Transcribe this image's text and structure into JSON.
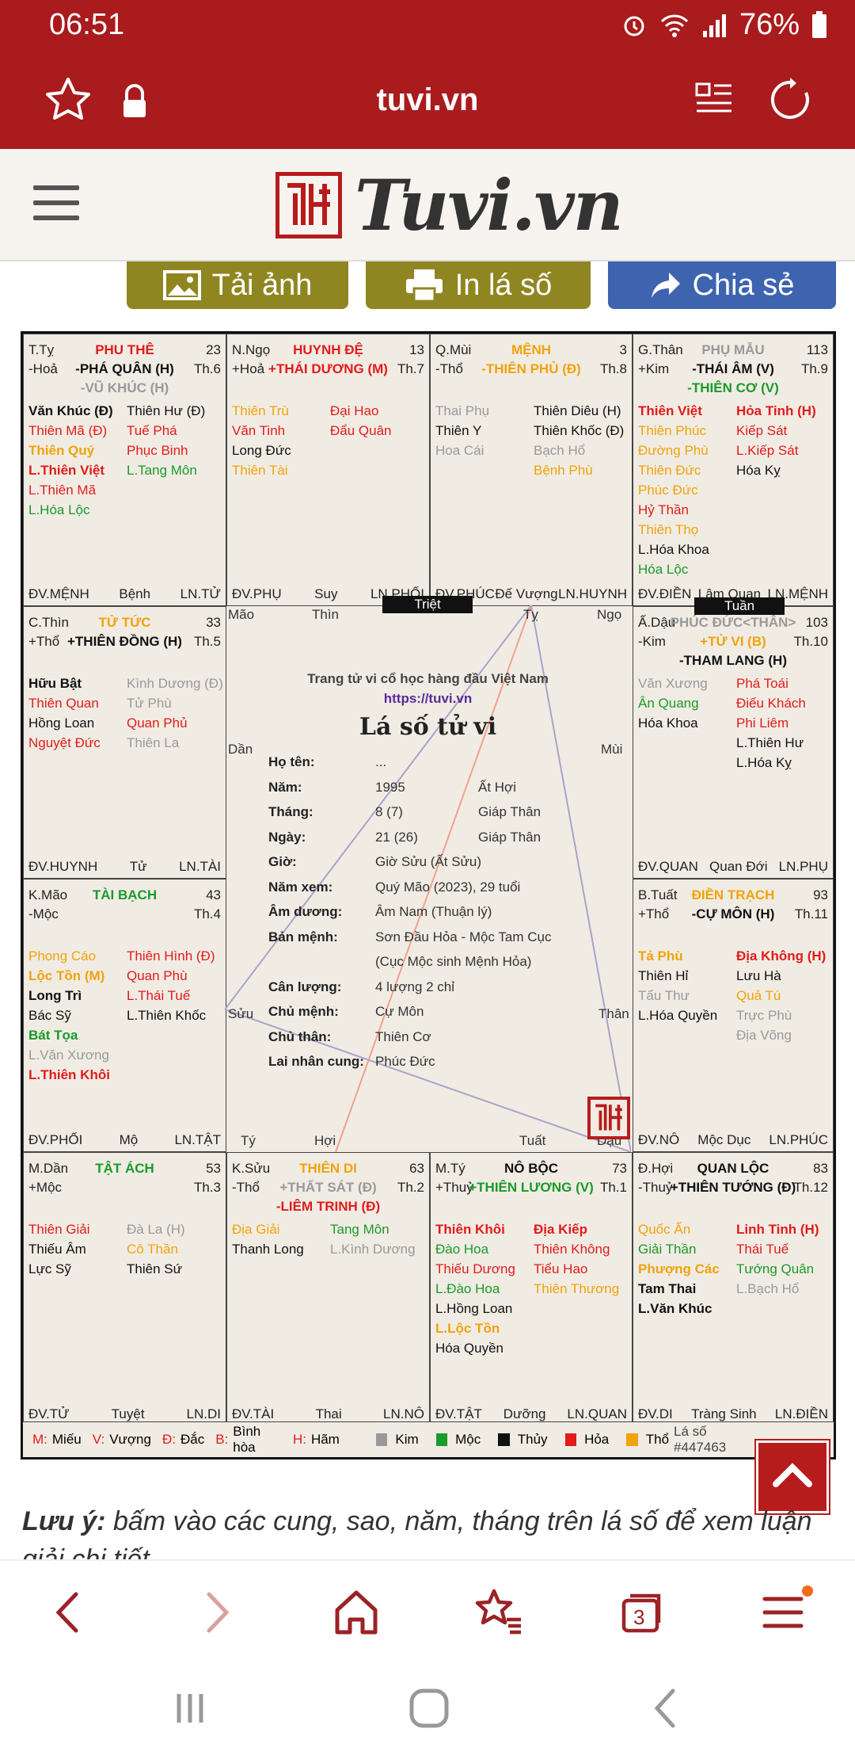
{
  "status": {
    "time": "06:51",
    "battery": "76%"
  },
  "browser": {
    "url": "tuvi.vn",
    "tab_count": "3"
  },
  "site": {
    "logo_text": "Tuvi.vn"
  },
  "actions": {
    "download": "Tải ảnh",
    "print": "In lá số",
    "share": "Chia sẻ"
  },
  "cells": [
    {
      "id": "ty",
      "h1": "T.Tỵ",
      "h2": "-Hoả",
      "palace": "PHU THÊ",
      "palace_color": "#e21b1b",
      "num": "23",
      "main": "-PHÁ QUÂN (H)",
      "main_color": "#111",
      "main2": "-VŨ KHÚC (H)",
      "main2_color": "#999",
      "th": "Th.6",
      "left": [
        {
          "t": "Văn Khúc (Đ)",
          "c": "c-black b"
        },
        {
          "t": "Thiên Mã (Đ)",
          "c": "c-red"
        },
        {
          "t": "Thiên Quý",
          "c": "c-orange b"
        },
        {
          "t": "L.Thiên Việt",
          "c": "c-red b"
        },
        {
          "t": "L.Thiên Mã",
          "c": "c-red"
        },
        {
          "t": "L.Hóa Lộc",
          "c": "c-green"
        }
      ],
      "right": [
        {
          "t": "Thiên Hư (Đ)",
          "c": "c-black"
        },
        {
          "t": "Tuế Phá",
          "c": "c-red"
        },
        {
          "t": "Phục Binh",
          "c": "c-red"
        },
        {
          "t": "L.Tang Môn",
          "c": "c-green"
        }
      ],
      "f1": "ĐV.MỆNH",
      "f2": "Bệnh",
      "f3": "LN.TỬ"
    },
    {
      "id": "ngo",
      "h1": "N.Ngọ",
      "h2": "+Hoả",
      "palace": "HUYNH ĐỆ",
      "palace_color": "#e21b1b",
      "num": "13",
      "main": "+THÁI DƯƠNG (M)",
      "main_color": "#e21b1b",
      "main2": "",
      "main2_color": "#111",
      "th": "Th.7",
      "left": [
        {
          "t": "Thiên Trù",
          "c": "c-orange"
        },
        {
          "t": "Văn Tinh",
          "c": "c-red"
        },
        {
          "t": "Long Đức",
          "c": "c-black"
        },
        {
          "t": "Thiên Tài",
          "c": "c-orange"
        }
      ],
      "right": [
        {
          "t": "Đại Hao",
          "c": "c-red"
        },
        {
          "t": "Đẩu Quân",
          "c": "c-red"
        }
      ],
      "f1": "ĐV.PHỤ",
      "f2": "Suy",
      "f3": "LN.PHỐI"
    },
    {
      "id": "mui",
      "h1": "Q.Mùi",
      "h2": "-Thổ",
      "palace": "MỆNH",
      "palace_color": "#f2a20a",
      "num": "3",
      "main": "-THIÊN PHỦ (Đ)",
      "main_color": "#f2a20a",
      "main2": "",
      "main2_color": "#111",
      "th": "Th.8",
      "left": [
        {
          "t": "Thai Phụ",
          "c": "c-gray"
        },
        {
          "t": "Thiên Y",
          "c": "c-black"
        },
        {
          "t": "Hoa Cái",
          "c": "c-gray"
        }
      ],
      "right": [
        {
          "t": "Thiên Diêu (H)",
          "c": "c-black"
        },
        {
          "t": "Thiên Khốc (Đ)",
          "c": "c-black"
        },
        {
          "t": "Bạch Hổ",
          "c": "c-gray"
        },
        {
          "t": "Bệnh Phù",
          "c": "c-orange"
        }
      ],
      "f1": "ĐV.PHÚC",
      "f2": "Đế Vượng",
      "f3": "LN.HUYNH"
    },
    {
      "id": "than",
      "h1": "G.Thân",
      "h2": "+Kim",
      "palace": "PHỤ MẪU",
      "palace_color": "#999",
      "num": "113",
      "main": "-THÁI ÂM (V)",
      "main_color": "#111",
      "main2": "-THIÊN CƠ (V)",
      "main2_color": "#1a9a2a",
      "th": "Th.9",
      "left": [
        {
          "t": "Thiên Việt",
          "c": "c-red b"
        },
        {
          "t": "Thiên Phúc",
          "c": "c-orange"
        },
        {
          "t": "Đường Phù",
          "c": "c-orange"
        },
        {
          "t": "Thiên Đức",
          "c": "c-orange"
        },
        {
          "t": "Phúc Đức",
          "c": "c-orange"
        },
        {
          "t": "Hỷ Thần",
          "c": "c-red"
        },
        {
          "t": "Thiên Thọ",
          "c": "c-orange"
        },
        {
          "t": "L.Hóa Khoa",
          "c": "c-black"
        },
        {
          "t": "Hóa Lộc",
          "c": "c-green"
        }
      ],
      "right": [
        {
          "t": "Hỏa Tinh (H)",
          "c": "c-red b"
        },
        {
          "t": "Kiếp Sát",
          "c": "c-red"
        },
        {
          "t": "L.Kiếp Sát",
          "c": "c-red"
        },
        {
          "t": "Hóa Kỵ",
          "c": "c-black"
        }
      ],
      "f1": "ĐV.ĐIỀN",
      "f2": "Lâm Quan",
      "f3": "LN.MỆNH"
    },
    {
      "id": "thin",
      "h1": "C.Thìn",
      "h2": "+Thổ",
      "palace": "TỬ TỨC",
      "palace_color": "#f2a20a",
      "num": "33",
      "main": "+THIÊN ĐỒNG (H)",
      "main_color": "#111",
      "main2": "",
      "main2_color": "#111",
      "th": "Th.5",
      "left": [
        {
          "t": "Hữu Bật",
          "c": "c-black b"
        },
        {
          "t": "Thiên Quan",
          "c": "c-red"
        },
        {
          "t": "Hồng Loan",
          "c": "c-black"
        },
        {
          "t": "Nguyệt Đức",
          "c": "c-red"
        }
      ],
      "right": [
        {
          "t": "Kình Dương (Đ)",
          "c": "c-gray"
        },
        {
          "t": "Tử Phù",
          "c": "c-gray"
        },
        {
          "t": "Quan Phủ",
          "c": "c-red"
        },
        {
          "t": "Thiên La",
          "c": "c-gray"
        }
      ],
      "f1": "ĐV.HUYNH",
      "f2": "Tử",
      "f3": "LN.TÀI"
    },
    {
      "id": "dau",
      "h1": "Ấ.Dậu",
      "h2": "-Kim",
      "palace": "PHÚC ĐỨC<THÂN>",
      "palace_color": "#999",
      "num": "103",
      "main": "+TỬ VI (B)",
      "main_color": "#f2a20a",
      "main2": "-THAM LANG (H)",
      "main2_color": "#111",
      "th": "Th.10",
      "left": [
        {
          "t": "Văn Xương",
          "c": "c-gray"
        },
        {
          "t": "Ân Quang",
          "c": "c-green"
        },
        {
          "t": "Hóa Khoa",
          "c": "c-black"
        }
      ],
      "right": [
        {
          "t": "Phá Toái",
          "c": "c-red"
        },
        {
          "t": "Điếu Khách",
          "c": "c-red"
        },
        {
          "t": "Phi Liêm",
          "c": "c-red"
        },
        {
          "t": "L.Thiên Hư",
          "c": "c-black"
        },
        {
          "t": "L.Hóa Kỵ",
          "c": "c-black"
        }
      ],
      "f1": "ĐV.QUAN",
      "f2": "Quan Đới",
      "f3": "LN.PHỤ"
    },
    {
      "id": "mao",
      "h1": "K.Mão",
      "h2": "-Mộc",
      "palace": "TÀI BẠCH",
      "palace_color": "#1a9a2a",
      "num": "43",
      "main": "",
      "main_color": "#111",
      "main2": "",
      "main2_color": "#111",
      "th": "Th.4",
      "left": [
        {
          "t": "Phong Cáo",
          "c": "c-orange"
        },
        {
          "t": "Lộc Tồn (M)",
          "c": "c-orange b"
        },
        {
          "t": "Long Trì",
          "c": "c-black b"
        },
        {
          "t": "Bác Sỹ",
          "c": "c-black"
        },
        {
          "t": "Bát Tọa",
          "c": "c-green b"
        },
        {
          "t": "L.Văn Xương",
          "c": "c-gray"
        },
        {
          "t": "L.Thiên Khôi",
          "c": "c-red b"
        }
      ],
      "right": [
        {
          "t": "Thiên Hình (Đ)",
          "c": "c-red"
        },
        {
          "t": "Quan Phù",
          "c": "c-red"
        },
        {
          "t": "L.Thái Tuế",
          "c": "c-red"
        },
        {
          "t": "L.Thiên Khốc",
          "c": "c-black"
        }
      ],
      "f1": "ĐV.PHỐI",
      "f2": "Mộ",
      "f3": "LN.TẬT"
    },
    {
      "id": "tuat",
      "h1": "B.Tuất",
      "h2": "+Thổ",
      "palace": "ĐIỀN TRẠCH",
      "palace_color": "#f2a20a",
      "num": "93",
      "main": "-CỰ MÔN (H)",
      "main_color": "#111",
      "main2": "",
      "main2_color": "#111",
      "th": "Th.11",
      "left": [
        {
          "t": "Tả Phù",
          "c": "c-orange b"
        },
        {
          "t": "Thiên Hỉ",
          "c": "c-black"
        },
        {
          "t": "Tấu Thư",
          "c": "c-gray"
        },
        {
          "t": "L.Hóa Quyền",
          "c": "c-black"
        }
      ],
      "right": [
        {
          "t": "Địa Không (H)",
          "c": "c-red b"
        },
        {
          "t": "Lưu Hà",
          "c": "c-black"
        },
        {
          "t": "Quả Tú",
          "c": "c-orange"
        },
        {
          "t": "Trực Phù",
          "c": "c-gray"
        },
        {
          "t": "Địa Võng",
          "c": "c-gray"
        }
      ],
      "f1": "ĐV.NÔ",
      "f2": "Mộc Dục",
      "f3": "LN.PHÚC"
    },
    {
      "id": "dan",
      "h1": "M.Dần",
      "h2": "+Mộc",
      "palace": "TẬT ÁCH",
      "palace_color": "#1a9a2a",
      "num": "53",
      "main": "",
      "main_color": "#111",
      "main2": "",
      "main2_color": "#111",
      "th": "Th.3",
      "left": [
        {
          "t": "Thiên Giải",
          "c": "c-red"
        },
        {
          "t": "Thiếu Âm",
          "c": "c-black"
        },
        {
          "t": "Lực Sỹ",
          "c": "c-black"
        }
      ],
      "right": [
        {
          "t": "Đà La (H)",
          "c": "c-gray"
        },
        {
          "t": "Cô Thần",
          "c": "c-orange"
        },
        {
          "t": "Thiên Sứ",
          "c": "c-black"
        }
      ],
      "f1": "ĐV.TỬ",
      "f2": "Tuyệt",
      "f3": "LN.DI"
    },
    {
      "id": "suu",
      "h1": "K.Sửu",
      "h2": "-Thổ",
      "palace": "THIÊN DI",
      "palace_color": "#f2a20a",
      "num": "63",
      "main": "+THẤT SÁT (Đ)",
      "main_color": "#999",
      "main2": "-LIÊM TRINH (Đ)",
      "main2_color": "#e21b1b",
      "th": "Th.2",
      "left": [
        {
          "t": "Địa Giải",
          "c": "c-orange"
        },
        {
          "t": "Thanh Long",
          "c": "c-black"
        }
      ],
      "right": [
        {
          "t": "Tang Môn",
          "c": "c-green"
        },
        {
          "t": "L.Kình Dương",
          "c": "c-gray"
        }
      ],
      "f1": "ĐV.TÀI",
      "f2": "Thai",
      "f3": "LN.NÔ"
    },
    {
      "id": "ti",
      "h1": "M.Tý",
      "h2": "+Thuỷ",
      "palace": "NÔ BỘC",
      "palace_color": "#111",
      "num": "73",
      "main": "+THIÊN LƯƠNG (V)",
      "main_color": "#1a9a2a",
      "main2": "",
      "main2_color": "#111",
      "th": "Th.1",
      "left": [
        {
          "t": "Thiên Khôi",
          "c": "c-red b"
        },
        {
          "t": "Đào Hoa",
          "c": "c-green"
        },
        {
          "t": "Thiếu Dương",
          "c": "c-red"
        },
        {
          "t": "L.Đào Hoa",
          "c": "c-green"
        },
        {
          "t": "L.Hồng Loan",
          "c": "c-black"
        },
        {
          "t": "L.Lộc Tồn",
          "c": "c-orange b"
        },
        {
          "t": "Hóa Quyền",
          "c": "c-black"
        }
      ],
      "right": [
        {
          "t": "Địa Kiếp",
          "c": "c-red b"
        },
        {
          "t": "Thiên Không",
          "c": "c-red"
        },
        {
          "t": "Tiểu Hao",
          "c": "c-red"
        },
        {
          "t": "Thiên Thương",
          "c": "c-orange"
        }
      ],
      "f1": "ĐV.TẬT",
      "f2": "Dưỡng",
      "f3": "LN.QUAN"
    },
    {
      "id": "hoi",
      "h1": "Đ.Hợi",
      "h2": "-Thuỷ",
      "palace": "QUAN LỘC",
      "palace_color": "#111",
      "num": "83",
      "main": "+THIÊN TƯỚNG (Đ)",
      "main_color": "#111",
      "main2": "",
      "main2_color": "#111",
      "th": "Th.12",
      "left": [
        {
          "t": "Quốc Ấn",
          "c": "c-orange"
        },
        {
          "t": "Giải Thần",
          "c": "c-green"
        },
        {
          "t": "Phượng Các",
          "c": "c-orange b"
        },
        {
          "t": "Tam Thai",
          "c": "c-black b"
        },
        {
          "t": "L.Văn Khúc",
          "c": "c-black b"
        }
      ],
      "right": [
        {
          "t": "Linh Tinh (H)",
          "c": "c-red b"
        },
        {
          "t": "Thái Tuế",
          "c": "c-red"
        },
        {
          "t": "Tướng Quân",
          "c": "c-green"
        },
        {
          "t": "L.Bạch Hổ",
          "c": "c-gray"
        }
      ],
      "f1": "ĐV.DI",
      "f2": "Tràng Sinh",
      "f3": "LN.ĐIỀN"
    }
  ],
  "center": {
    "corners": {
      "mao": "Mão",
      "thin": "Thìn",
      "ty": "Tỵ",
      "ngo": "Ngọ",
      "dan": "Dần",
      "mui": "Mùi",
      "suu": "Sửu",
      "than": "Thân",
      "ty2": "Tý",
      "hoi": "Hợi",
      "tuat": "Tuất",
      "dau": "Dậu"
    },
    "subtitle": "Trang tử vi cổ học hàng đầu Việt Nam",
    "link": "https://tuvi.vn",
    "heading": "Lá số tử vi",
    "rows": [
      {
        "k": "Họ tên:",
        "v": "...",
        "v2": ""
      },
      {
        "k": "Năm:",
        "v": "1995",
        "v2": "Ất Hợi"
      },
      {
        "k": "Tháng:",
        "v": "8 (7)",
        "v2": "Giáp Thân"
      },
      {
        "k": "Ngày:",
        "v": "21 (26)",
        "v2": "Giáp Thân"
      },
      {
        "k": "Giờ:",
        "v": "Giờ Sửu (Ất Sửu)",
        "v2": ""
      },
      {
        "k": "Năm xem:",
        "v": "Quý Mão (2023), 29 tuổi",
        "v2": ""
      },
      {
        "k": "Âm dương:",
        "v": "Âm Nam (Thuận lý)",
        "v2": ""
      },
      {
        "k": "Bản mệnh:",
        "v": "Sơn Đầu Hỏa - Mộc Tam Cục",
        "v2": ""
      },
      {
        "k": "",
        "v": "(Cục Mộc sinh Mệnh Hỏa)",
        "v2": ""
      },
      {
        "k": "Cân lượng:",
        "v": "4 lượng 2 chỉ",
        "v2": ""
      },
      {
        "k": "Chủ mệnh:",
        "v": "Cự Môn",
        "v2": ""
      },
      {
        "k": "Chủ thân:",
        "v": "Thiên Cơ",
        "v2": ""
      },
      {
        "k": "Lai nhân cung:",
        "v": "Phúc Đức",
        "v2": ""
      }
    ]
  },
  "tags": {
    "triet": "Triệt",
    "tuan": "Tuần"
  },
  "legend": {
    "m": "M:",
    "m_t": "Miếu",
    "v": "V:",
    "v_t": "Vượng",
    "d": "Đ:",
    "d_t": "Đắc",
    "b": "B:",
    "b_t": "Bình hòa",
    "h": "H:",
    "h_t": "Hãm",
    "kim": "Kim",
    "moc": "Mộc",
    "thuy": "Thủy",
    "hoa": "Hỏa",
    "tho": "Thổ",
    "laso": "Lá số #447463"
  },
  "note": {
    "bold": "Lưu ý:",
    "text": " bấm vào các cung, sao, năm, tháng trên lá số để xem luận giải chi tiết"
  }
}
